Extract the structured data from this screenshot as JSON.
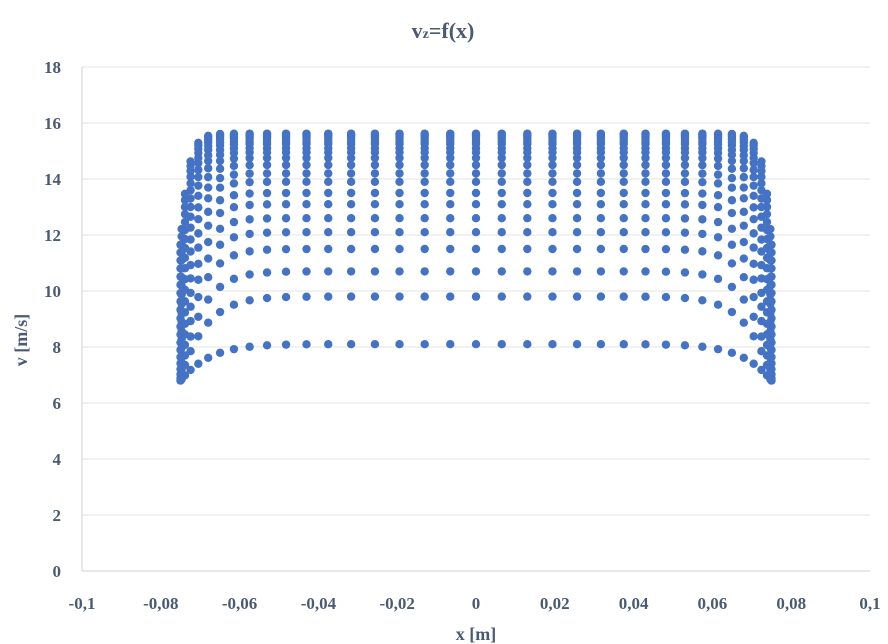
{
  "chart_data": {
    "type": "scatter",
    "title": {
      "main": "v",
      "subscript": "z",
      "rest": "=f(x)"
    },
    "xlabel": "x [m]",
    "ylabel": "v [m/s]",
    "xlim": [
      -0.1,
      0.1
    ],
    "ylim": [
      0,
      18
    ],
    "x_tick_values": [
      -0.1,
      -0.08,
      -0.06,
      -0.04,
      -0.02,
      0,
      0.02,
      0.04,
      0.06,
      0.08,
      0.1
    ],
    "x_tick_labels": [
      "-0,1",
      "-0,08",
      "-0,06",
      "-0,04",
      "-0,02",
      "0",
      "0,02",
      "0,04",
      "0,06",
      "0,08",
      "0,1"
    ],
    "y_tick_values": [
      0,
      2,
      4,
      6,
      8,
      10,
      12,
      14,
      16,
      18
    ],
    "y_tick_labels": [
      "0",
      "2",
      "4",
      "6",
      "8",
      "10",
      "12",
      "14",
      "16",
      "18"
    ],
    "grid": {
      "horizontal": true,
      "vertical": false
    },
    "legend": "none",
    "marker_color": "#4472c4",
    "series": [
      {
        "x_half_range": 0.075,
        "points_per_profile": 37,
        "plateau_values": [
          8.1,
          9.8,
          10.7,
          11.5,
          12.1,
          12.6,
          13.1,
          13.5,
          13.9,
          14.2,
          14.5,
          14.75,
          14.95,
          15.1,
          15.25,
          15.35,
          15.45,
          15.52,
          15.58,
          15.62
        ],
        "note_shape": "each profile is flat across the center and drops near x = ±0.075 m; the lowest profile falls to about 6.8 m/s at the walls"
      }
    ]
  }
}
